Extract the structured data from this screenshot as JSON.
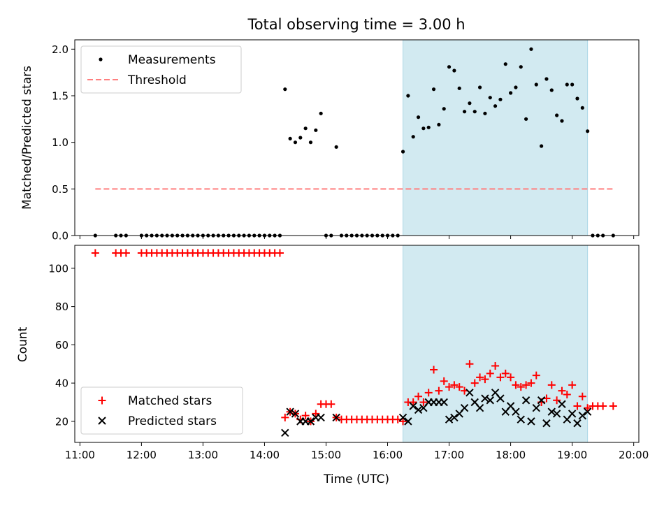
{
  "title": "Total observing time = 3.00 h",
  "xlabel": "Time (UTC)",
  "colors": {
    "shade": "#add8e6",
    "threshold": "#ff7f7f",
    "matched": "#ff0000",
    "predicted": "#000000",
    "measure": "#000000"
  },
  "chart_data": [
    {
      "type": "scatter",
      "ylabel": "Matched/Predicted stars",
      "ylim": [
        0,
        2.1
      ],
      "yticks": [
        "0.0",
        "0.5",
        "1.0",
        "1.5",
        "2.0"
      ],
      "xlim": [
        "10:55",
        "20:05"
      ],
      "shaded_span": [
        "16:15",
        "19:15"
      ],
      "legend": {
        "placement": "upper-left",
        "entries": [
          "Measurements",
          "Threshold"
        ]
      },
      "threshold": {
        "name": "Threshold",
        "x": [
          "11:15",
          "19:40"
        ],
        "y": 0.5
      },
      "series": [
        {
          "name": "Measurements",
          "points": [
            [
              "11:15",
              0
            ],
            [
              "11:35",
              0
            ],
            [
              "11:40",
              0
            ],
            [
              "11:45",
              0
            ],
            [
              "12:00",
              0
            ],
            [
              "12:05",
              0
            ],
            [
              "12:10",
              0
            ],
            [
              "12:15",
              0
            ],
            [
              "12:20",
              0
            ],
            [
              "12:25",
              0
            ],
            [
              "12:30",
              0
            ],
            [
              "12:35",
              0
            ],
            [
              "12:40",
              0
            ],
            [
              "12:45",
              0
            ],
            [
              "12:50",
              0
            ],
            [
              "12:55",
              0
            ],
            [
              "13:00",
              0
            ],
            [
              "13:05",
              0
            ],
            [
              "13:10",
              0
            ],
            [
              "13:15",
              0
            ],
            [
              "13:20",
              0
            ],
            [
              "13:25",
              0
            ],
            [
              "13:30",
              0
            ],
            [
              "13:35",
              0
            ],
            [
              "13:40",
              0
            ],
            [
              "13:45",
              0
            ],
            [
              "13:50",
              0
            ],
            [
              "13:55",
              0
            ],
            [
              "14:00",
              0
            ],
            [
              "14:05",
              0
            ],
            [
              "14:10",
              0
            ],
            [
              "14:15",
              0
            ],
            [
              "14:20",
              1.57
            ],
            [
              "14:25",
              1.04
            ],
            [
              "14:30",
              1.0
            ],
            [
              "14:35",
              1.05
            ],
            [
              "14:40",
              1.15
            ],
            [
              "14:45",
              1.0
            ],
            [
              "14:50",
              1.13
            ],
            [
              "14:55",
              1.31
            ],
            [
              "15:00",
              0
            ],
            [
              "15:05",
              0
            ],
            [
              "15:10",
              0.95
            ],
            [
              "15:15",
              0
            ],
            [
              "15:20",
              0
            ],
            [
              "15:25",
              0
            ],
            [
              "15:30",
              0
            ],
            [
              "15:35",
              0
            ],
            [
              "15:40",
              0
            ],
            [
              "15:45",
              0
            ],
            [
              "15:50",
              0
            ],
            [
              "15:55",
              0
            ],
            [
              "16:00",
              0
            ],
            [
              "16:05",
              0
            ],
            [
              "16:10",
              0
            ],
            [
              "16:15",
              0.9
            ],
            [
              "16:20",
              1.5
            ],
            [
              "16:25",
              1.06
            ],
            [
              "16:30",
              1.27
            ],
            [
              "16:35",
              1.15
            ],
            [
              "16:40",
              1.16
            ],
            [
              "16:45",
              1.57
            ],
            [
              "16:50",
              1.19
            ],
            [
              "16:55",
              1.36
            ],
            [
              "17:00",
              1.81
            ],
            [
              "17:05",
              1.77
            ],
            [
              "17:10",
              1.58
            ],
            [
              "17:15",
              1.33
            ],
            [
              "17:20",
              1.42
            ],
            [
              "17:25",
              1.33
            ],
            [
              "17:30",
              1.59
            ],
            [
              "17:35",
              1.31
            ],
            [
              "17:40",
              1.48
            ],
            [
              "17:45",
              1.39
            ],
            [
              "17:50",
              1.46
            ],
            [
              "17:55",
              1.84
            ],
            [
              "18:00",
              1.53
            ],
            [
              "18:05",
              1.59
            ],
            [
              "18:10",
              1.81
            ],
            [
              "18:15",
              1.25
            ],
            [
              "18:20",
              2.0
            ],
            [
              "18:25",
              1.62
            ],
            [
              "18:30",
              0.96
            ],
            [
              "18:35",
              1.68
            ],
            [
              "18:40",
              1.56
            ],
            [
              "18:45",
              1.29
            ],
            [
              "18:50",
              1.23
            ],
            [
              "18:55",
              1.62
            ],
            [
              "19:00",
              1.62
            ],
            [
              "19:05",
              1.47
            ],
            [
              "19:10",
              1.37
            ],
            [
              "19:15",
              1.12
            ],
            [
              "19:20",
              0
            ],
            [
              "19:25",
              0
            ],
            [
              "19:30",
              0
            ],
            [
              "19:40",
              0
            ]
          ]
        }
      ]
    },
    {
      "type": "scatter",
      "ylabel": "Count",
      "ylim": [
        9,
        112
      ],
      "yticks": [
        "20",
        "40",
        "60",
        "80",
        "100"
      ],
      "xlim": [
        "10:55",
        "20:05"
      ],
      "xticks": [
        "11:00",
        "12:00",
        "13:00",
        "14:00",
        "15:00",
        "16:00",
        "17:00",
        "18:00",
        "19:00",
        "20:00"
      ],
      "shaded_span": [
        "16:15",
        "19:15"
      ],
      "legend": {
        "placement": "lower-left",
        "entries": [
          "Matched stars",
          "Predicted stars"
        ]
      },
      "series": [
        {
          "name": "Matched stars",
          "marker": "plus",
          "points": [
            [
              "11:15",
              108
            ],
            [
              "11:35",
              108
            ],
            [
              "11:40",
              108
            ],
            [
              "11:45",
              108
            ],
            [
              "12:00",
              108
            ],
            [
              "12:05",
              108
            ],
            [
              "12:10",
              108
            ],
            [
              "12:15",
              108
            ],
            [
              "12:20",
              108
            ],
            [
              "12:25",
              108
            ],
            [
              "12:30",
              108
            ],
            [
              "12:35",
              108
            ],
            [
              "12:40",
              108
            ],
            [
              "12:45",
              108
            ],
            [
              "12:50",
              108
            ],
            [
              "12:55",
              108
            ],
            [
              "13:00",
              108
            ],
            [
              "13:05",
              108
            ],
            [
              "13:10",
              108
            ],
            [
              "13:15",
              108
            ],
            [
              "13:20",
              108
            ],
            [
              "13:25",
              108
            ],
            [
              "13:30",
              108
            ],
            [
              "13:35",
              108
            ],
            [
              "13:40",
              108
            ],
            [
              "13:45",
              108
            ],
            [
              "13:50",
              108
            ],
            [
              "13:55",
              108
            ],
            [
              "14:00",
              108
            ],
            [
              "14:05",
              108
            ],
            [
              "14:10",
              108
            ],
            [
              "14:15",
              108
            ],
            [
              "14:20",
              22
            ],
            [
              "14:25",
              25
            ],
            [
              "14:30",
              24
            ],
            [
              "14:35",
              21
            ],
            [
              "14:40",
              23
            ],
            [
              "14:45",
              20
            ],
            [
              "14:50",
              24
            ],
            [
              "14:55",
              29
            ],
            [
              "15:00",
              29
            ],
            [
              "15:05",
              29
            ],
            [
              "15:10",
              22
            ],
            [
              "15:15",
              21
            ],
            [
              "15:20",
              21
            ],
            [
              "15:25",
              21
            ],
            [
              "15:30",
              21
            ],
            [
              "15:35",
              21
            ],
            [
              "15:40",
              21
            ],
            [
              "15:45",
              21
            ],
            [
              "15:50",
              21
            ],
            [
              "15:55",
              21
            ],
            [
              "16:00",
              21
            ],
            [
              "16:05",
              21
            ],
            [
              "16:10",
              21
            ],
            [
              "16:15",
              20
            ],
            [
              "16:20",
              30
            ],
            [
              "16:25",
              30
            ],
            [
              "16:30",
              33
            ],
            [
              "16:35",
              30
            ],
            [
              "16:40",
              35
            ],
            [
              "16:45",
              47
            ],
            [
              "16:50",
              36
            ],
            [
              "16:55",
              41
            ],
            [
              "17:00",
              38
            ],
            [
              "17:05",
              39
            ],
            [
              "17:10",
              38
            ],
            [
              "17:15",
              36
            ],
            [
              "17:20",
              50
            ],
            [
              "17:25",
              40
            ],
            [
              "17:30",
              43
            ],
            [
              "17:35",
              42
            ],
            [
              "17:40",
              45
            ],
            [
              "17:45",
              49
            ],
            [
              "17:50",
              43
            ],
            [
              "17:55",
              45
            ],
            [
              "18:00",
              43
            ],
            [
              "18:05",
              39
            ],
            [
              "18:10",
              38
            ],
            [
              "18:15",
              39
            ],
            [
              "18:20",
              40
            ],
            [
              "18:25",
              44
            ],
            [
              "18:30",
              30
            ],
            [
              "18:35",
              32
            ],
            [
              "18:40",
              39
            ],
            [
              "18:45",
              31
            ],
            [
              "18:50",
              36
            ],
            [
              "18:55",
              34
            ],
            [
              "19:00",
              39
            ],
            [
              "19:05",
              28
            ],
            [
              "19:10",
              33
            ],
            [
              "19:15",
              27
            ],
            [
              "19:20",
              28
            ],
            [
              "19:25",
              28
            ],
            [
              "19:30",
              28
            ],
            [
              "19:40",
              28
            ]
          ]
        },
        {
          "name": "Predicted stars",
          "marker": "x",
          "points": [
            [
              "14:20",
              14
            ],
            [
              "14:25",
              25
            ],
            [
              "14:30",
              24
            ],
            [
              "14:35",
              20
            ],
            [
              "14:40",
              20
            ],
            [
              "14:45",
              20
            ],
            [
              "14:50",
              22
            ],
            [
              "14:55",
              22
            ],
            [
              "15:10",
              22
            ],
            [
              "16:15",
              22
            ],
            [
              "16:20",
              20
            ],
            [
              "16:25",
              28
            ],
            [
              "16:30",
              26
            ],
            [
              "16:35",
              27
            ],
            [
              "16:40",
              30
            ],
            [
              "16:45",
              30
            ],
            [
              "16:50",
              30
            ],
            [
              "16:55",
              30
            ],
            [
              "17:00",
              21
            ],
            [
              "17:05",
              22
            ],
            [
              "17:10",
              24
            ],
            [
              "17:15",
              27
            ],
            [
              "17:20",
              35
            ],
            [
              "17:25",
              30
            ],
            [
              "17:30",
              27
            ],
            [
              "17:35",
              32
            ],
            [
              "17:40",
              31
            ],
            [
              "17:45",
              35
            ],
            [
              "17:50",
              32
            ],
            [
              "17:55",
              25
            ],
            [
              "18:00",
              28
            ],
            [
              "18:05",
              25
            ],
            [
              "18:10",
              21
            ],
            [
              "18:15",
              31
            ],
            [
              "18:20",
              20
            ],
            [
              "18:25",
              27
            ],
            [
              "18:30",
              31
            ],
            [
              "18:35",
              19
            ],
            [
              "18:40",
              25
            ],
            [
              "18:45",
              24
            ],
            [
              "18:50",
              29
            ],
            [
              "18:55",
              21
            ],
            [
              "19:00",
              24
            ],
            [
              "19:05",
              19
            ],
            [
              "19:10",
              23
            ],
            [
              "19:15",
              25
            ]
          ]
        }
      ]
    }
  ]
}
